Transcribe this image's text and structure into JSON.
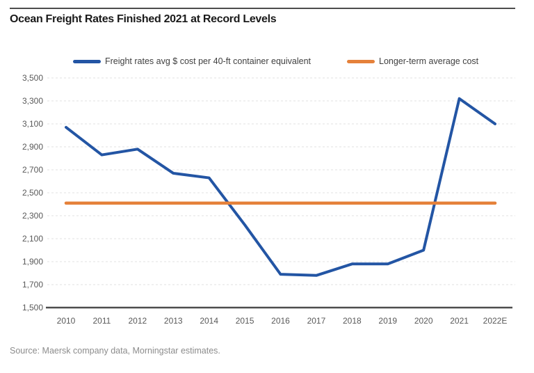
{
  "chart_data": {
    "type": "line",
    "title": "Ocean Freight Rates Finished 2021 at Record Levels",
    "categories": [
      "2010",
      "2011",
      "2012",
      "2013",
      "2014",
      "2015",
      "2016",
      "2017",
      "2018",
      "2019",
      "2020",
      "2021",
      "2022E"
    ],
    "series": [
      {
        "name": "Freight rates avg $ cost per 40-ft container equivalent",
        "color": "#2355a4",
        "values": [
          3070,
          2830,
          2880,
          2670,
          2630,
          2220,
          1790,
          1780,
          1880,
          1880,
          2000,
          3320,
          3100
        ]
      },
      {
        "name": "Longer-term average cost",
        "color": "#e5813a",
        "value": 2410
      }
    ],
    "ylim": [
      1500,
      3500
    ],
    "y_ticks": [
      {
        "value": 3500,
        "label": "3,500"
      },
      {
        "value": 3300,
        "label": "3,300"
      },
      {
        "value": 3100,
        "label": "3,100"
      },
      {
        "value": 2900,
        "label": "2,900"
      },
      {
        "value": 2700,
        "label": "2,700"
      },
      {
        "value": 2500,
        "label": "2,500"
      },
      {
        "value": 2300,
        "label": "2,300"
      },
      {
        "value": 2100,
        "label": "2,100"
      },
      {
        "value": 1900,
        "label": "1,900"
      },
      {
        "value": 1700,
        "label": "1,700"
      },
      {
        "value": 1500,
        "label": "1,500"
      }
    ],
    "grid": "horizontal-dashed",
    "grid_color": "#e2e2e2",
    "axis_color": "#4d4d4d",
    "legend_position": "top"
  },
  "source_note": "Source: Maersk company data, Morningstar estimates."
}
